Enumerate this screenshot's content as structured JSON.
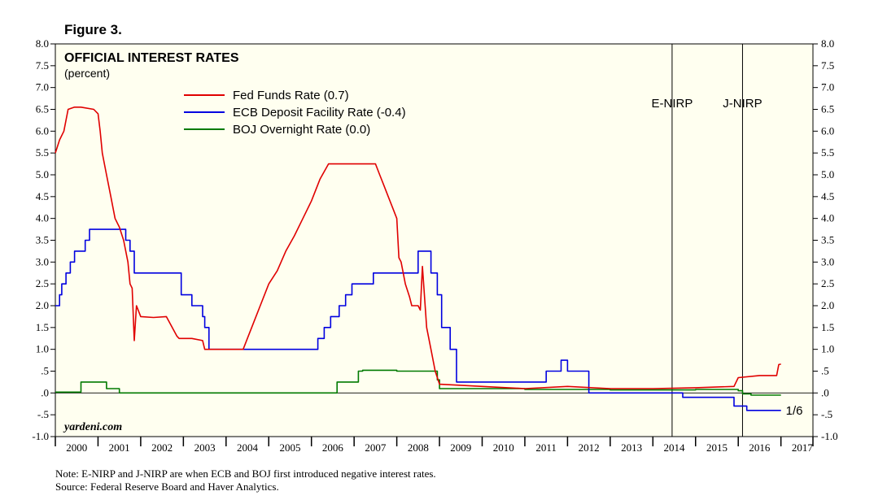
{
  "figure_label": "Figure 3.",
  "note": "Note: E-NIRP and J-NIRP are when ECB and BOJ first introduced negative interest rates.",
  "source": "Source: Federal Reserve Board and Haver Analytics.",
  "colors": {
    "background": "#fffff0",
    "fed": "#e00000",
    "ecb": "#0000e0",
    "boj": "#007a00"
  },
  "chart_data": {
    "type": "line",
    "title": "OFFICIAL INTEREST RATES",
    "subtitle": "(percent)",
    "watermark": "yardeni.com",
    "xlim": [
      2000,
      2017.75
    ],
    "ylim": [
      -1.0,
      8.0
    ],
    "y_ticks": [
      "-1.0",
      "-.5",
      ".0",
      ".5",
      "1.0",
      "1.5",
      "2.0",
      "2.5",
      "3.0",
      "3.5",
      "4.0",
      "4.5",
      "5.0",
      "5.5",
      "6.0",
      "6.5",
      "7.0",
      "7.5",
      "8.0"
    ],
    "y_tick_values": [
      -1.0,
      -0.5,
      0.0,
      0.5,
      1.0,
      1.5,
      2.0,
      2.5,
      3.0,
      3.5,
      4.0,
      4.5,
      5.0,
      5.5,
      6.0,
      6.5,
      7.0,
      7.5,
      8.0
    ],
    "x_ticks": [
      "2000",
      "2001",
      "2002",
      "2003",
      "2004",
      "2005",
      "2006",
      "2007",
      "2008",
      "2009",
      "2010",
      "2011",
      "2012",
      "2013",
      "2014",
      "2015",
      "2016",
      "2017"
    ],
    "legend_position": "upper-left",
    "annotations": [
      {
        "label": "E-NIRP",
        "x": 2014.45
      },
      {
        "label": "J-NIRP",
        "x": 2016.1
      }
    ],
    "end_label": {
      "text": "1/6",
      "x": 2017.0,
      "y": -0.4
    },
    "series": [
      {
        "name": "Fed Funds Rate (0.7)",
        "color": "#e00000",
        "x": [
          2000.0,
          2000.1,
          2000.2,
          2000.3,
          2000.45,
          2000.6,
          2000.9,
          2001.0,
          2001.05,
          2001.1,
          2001.2,
          2001.3,
          2001.4,
          2001.5,
          2001.6,
          2001.7,
          2001.75,
          2001.8,
          2001.85,
          2001.9,
          2002.0,
          2002.3,
          2002.6,
          2002.85,
          2002.9,
          2003.2,
          2003.45,
          2003.5,
          2003.7,
          2004.0,
          2004.4,
          2004.5,
          2004.6,
          2004.8,
          2005.0,
          2005.2,
          2005.4,
          2005.6,
          2005.8,
          2006.0,
          2006.2,
          2006.4,
          2006.5,
          2007.0,
          2007.5,
          2007.6,
          2007.7,
          2007.8,
          2007.9,
          2008.0,
          2008.05,
          2008.1,
          2008.2,
          2008.3,
          2008.35,
          2008.5,
          2008.55,
          2008.6,
          2008.7,
          2008.8,
          2008.9,
          2009.0,
          2010.0,
          2011.0,
          2012.0,
          2013.0,
          2014.0,
          2015.0,
          2015.9,
          2016.0,
          2016.5,
          2016.9,
          2016.95,
          2017.0
        ],
        "values": [
          5.5,
          5.8,
          6.0,
          6.5,
          6.55,
          6.55,
          6.5,
          6.4,
          6.0,
          5.5,
          5.0,
          4.5,
          4.0,
          3.8,
          3.5,
          3.0,
          2.5,
          2.4,
          1.2,
          2.0,
          1.75,
          1.73,
          1.75,
          1.3,
          1.25,
          1.25,
          1.2,
          1.0,
          1.0,
          1.0,
          1.0,
          1.25,
          1.5,
          2.0,
          2.5,
          2.8,
          3.25,
          3.6,
          4.0,
          4.4,
          4.9,
          5.25,
          5.25,
          5.25,
          5.25,
          5.0,
          4.75,
          4.5,
          4.25,
          4.0,
          3.1,
          3.0,
          2.5,
          2.2,
          2.0,
          2.0,
          1.9,
          2.9,
          1.5,
          1.0,
          0.5,
          0.2,
          0.15,
          0.1,
          0.15,
          0.1,
          0.1,
          0.12,
          0.15,
          0.35,
          0.4,
          0.4,
          0.65,
          0.66
        ]
      },
      {
        "name": "ECB Deposit Facility Rate (-0.4)",
        "color": "#0000e0",
        "x": [
          2000.0,
          2000.1,
          2000.15,
          2000.25,
          2000.35,
          2000.45,
          2000.7,
          2000.8,
          2001.35,
          2001.65,
          2001.75,
          2001.85,
          2002.95,
          2003.2,
          2003.45,
          2003.5,
          2003.6,
          2005.9,
          2006.15,
          2006.3,
          2006.45,
          2006.65,
          2006.8,
          2006.95,
          2007.45,
          2008.5,
          2008.8,
          2008.95,
          2009.05,
          2009.25,
          2009.4,
          2011.25,
          2011.5,
          2011.85,
          2012.0,
          2012.5,
          2014.45,
          2014.7,
          2015.9,
          2016.2,
          2017.0
        ],
        "values": [
          2.0,
          2.25,
          2.5,
          2.75,
          3.0,
          3.25,
          3.5,
          3.75,
          3.75,
          3.5,
          3.25,
          2.75,
          2.25,
          2.0,
          1.75,
          1.5,
          1.0,
          1.0,
          1.25,
          1.5,
          1.75,
          2.0,
          2.25,
          2.5,
          2.75,
          3.25,
          2.75,
          2.25,
          1.5,
          1.0,
          0.25,
          0.25,
          0.5,
          0.75,
          0.5,
          0.0,
          0.0,
          -0.1,
          -0.3,
          -0.4,
          -0.4
        ]
      },
      {
        "name": "BOJ Overnight Rate (0.0)",
        "color": "#007a00",
        "x": [
          2000.0,
          2000.5,
          2000.6,
          2001.1,
          2001.2,
          2001.5,
          2002.0,
          2003.0,
          2004.0,
          2005.0,
          2006.0,
          2006.5,
          2006.6,
          2007.0,
          2007.1,
          2007.2,
          2008.0,
          2008.8,
          2008.95,
          2009.0,
          2010.0,
          2011.0,
          2012.0,
          2013.0,
          2014.0,
          2015.0,
          2016.0,
          2016.1,
          2016.3,
          2017.0
        ],
        "values": [
          0.02,
          0.02,
          0.25,
          0.25,
          0.1,
          0.0,
          0.0,
          0.0,
          0.0,
          0.0,
          0.0,
          0.0,
          0.25,
          0.25,
          0.5,
          0.52,
          0.5,
          0.5,
          0.3,
          0.1,
          0.1,
          0.08,
          0.08,
          0.07,
          0.07,
          0.08,
          0.05,
          -0.02,
          -0.05,
          -0.05
        ]
      }
    ]
  }
}
